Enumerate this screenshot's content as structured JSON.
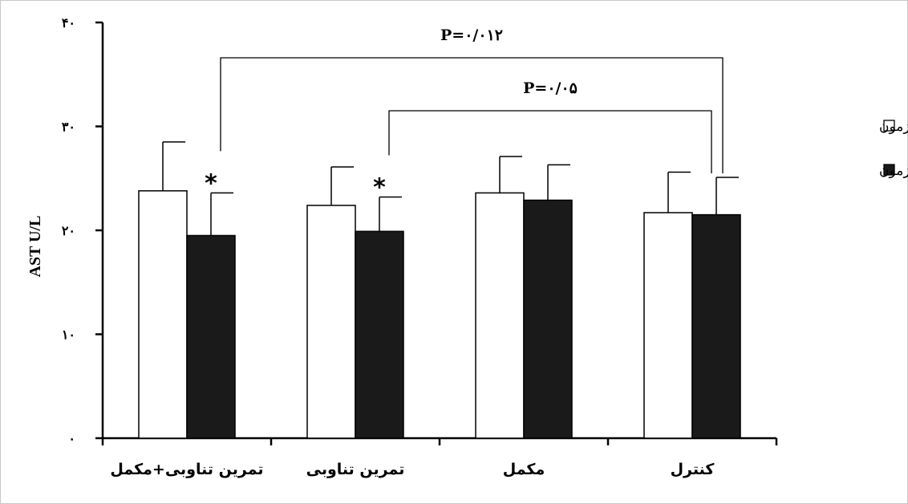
{
  "chart_data": {
    "type": "bar",
    "ylabel": "AST U/L",
    "ylim": [
      0,
      40
    ],
    "yticks": [
      {
        "value": 0,
        "label": "٠"
      },
      {
        "value": 10,
        "label": "١٠"
      },
      {
        "value": 20,
        "label": "٢٠"
      },
      {
        "value": 30,
        "label": "٣٠"
      },
      {
        "value": 40,
        "label": "۴٠"
      }
    ],
    "categories": [
      "تمرین تناوبی+مکمل",
      "تمرین تناوبی",
      "مکمل",
      "کنترل"
    ],
    "series": [
      {
        "name": "پیش آزمون",
        "color": "#ffffff",
        "values": [
          23.8,
          22.4,
          23.6,
          21.7
        ],
        "errors": [
          4.7,
          3.7,
          3.5,
          3.9
        ]
      },
      {
        "name": "پس آزمون",
        "color": "#1a1a1a",
        "values": [
          19.5,
          19.9,
          22.9,
          21.5
        ],
        "errors": [
          4.1,
          3.3,
          3.4,
          3.6
        ]
      }
    ],
    "legend_position": "right",
    "significance_markers": [
      {
        "category_index": 0,
        "series_index": 1,
        "label": "*"
      },
      {
        "category_index": 1,
        "series_index": 1,
        "label": "*"
      }
    ],
    "brackets": [
      {
        "label": "P=٠/٠١٢",
        "from_category": 0,
        "to_category": 3
      },
      {
        "label": "P=٠/٠۵",
        "from_category": 1,
        "to_category": 3
      }
    ]
  }
}
